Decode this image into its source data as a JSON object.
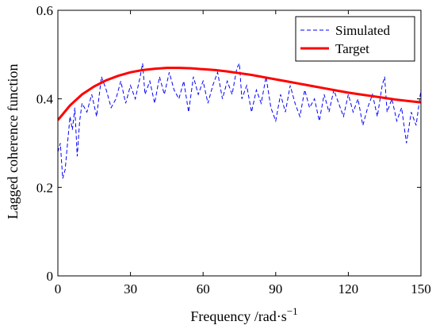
{
  "chart_data": {
    "type": "line",
    "title": "",
    "xlabel": "Frequency  /rad·s",
    "xlabel_superscript": "−1",
    "ylabel": "Lagged coherence function",
    "xlim": [
      0,
      150
    ],
    "ylim": [
      0,
      0.6
    ],
    "x_ticks": [
      0,
      30,
      60,
      90,
      120,
      150
    ],
    "x_tick_labels": [
      "0",
      "30",
      "60",
      "90",
      "120",
      "150"
    ],
    "y_ticks": [
      0,
      0.2,
      0.4,
      0.6
    ],
    "y_tick_labels": [
      "0",
      "0.2",
      "0.4",
      "0.6"
    ],
    "grid": false,
    "legend_position": "top-right",
    "series": [
      {
        "name": "Simulated",
        "color": "#0000ff",
        "style": "dashed",
        "x": [
          0,
          1,
          2,
          3,
          4,
          5,
          6,
          7,
          8,
          9,
          10,
          12,
          14,
          16,
          18,
          20,
          22,
          24,
          26,
          28,
          30,
          32,
          34,
          35,
          36,
          38,
          40,
          42,
          44,
          46,
          48,
          50,
          52,
          54,
          56,
          58,
          60,
          62,
          64,
          66,
          68,
          70,
          72,
          74,
          75,
          76,
          78,
          80,
          82,
          84,
          86,
          88,
          90,
          92,
          94,
          96,
          98,
          100,
          102,
          104,
          106,
          108,
          110,
          112,
          114,
          116,
          118,
          120,
          122,
          124,
          126,
          128,
          130,
          132,
          134,
          135,
          136,
          138,
          140,
          142,
          144,
          146,
          148,
          150
        ],
        "y": [
          0.28,
          0.3,
          0.22,
          0.24,
          0.3,
          0.36,
          0.33,
          0.38,
          0.27,
          0.35,
          0.39,
          0.37,
          0.41,
          0.36,
          0.45,
          0.42,
          0.38,
          0.4,
          0.44,
          0.39,
          0.43,
          0.4,
          0.45,
          0.48,
          0.41,
          0.44,
          0.39,
          0.45,
          0.41,
          0.46,
          0.42,
          0.4,
          0.44,
          0.37,
          0.45,
          0.41,
          0.44,
          0.39,
          0.43,
          0.46,
          0.4,
          0.44,
          0.41,
          0.47,
          0.48,
          0.4,
          0.43,
          0.37,
          0.42,
          0.39,
          0.45,
          0.38,
          0.35,
          0.41,
          0.37,
          0.43,
          0.39,
          0.36,
          0.42,
          0.38,
          0.4,
          0.35,
          0.41,
          0.37,
          0.42,
          0.39,
          0.36,
          0.41,
          0.37,
          0.4,
          0.34,
          0.38,
          0.41,
          0.36,
          0.43,
          0.45,
          0.37,
          0.4,
          0.35,
          0.38,
          0.3,
          0.37,
          0.34,
          0.42
        ]
      },
      {
        "name": "Target",
        "color": "#ff0000",
        "style": "solid",
        "x": [
          0,
          5,
          10,
          15,
          20,
          25,
          30,
          35,
          40,
          45,
          50,
          55,
          60,
          65,
          70,
          75,
          80,
          85,
          90,
          95,
          100,
          105,
          110,
          115,
          120,
          125,
          130,
          135,
          140,
          145,
          150
        ],
        "y": [
          0.352,
          0.385,
          0.41,
          0.428,
          0.442,
          0.452,
          0.46,
          0.465,
          0.468,
          0.47,
          0.47,
          0.469,
          0.467,
          0.465,
          0.462,
          0.458,
          0.454,
          0.449,
          0.444,
          0.439,
          0.434,
          0.429,
          0.424,
          0.419,
          0.414,
          0.41,
          0.406,
          0.402,
          0.398,
          0.395,
          0.392
        ]
      }
    ]
  }
}
